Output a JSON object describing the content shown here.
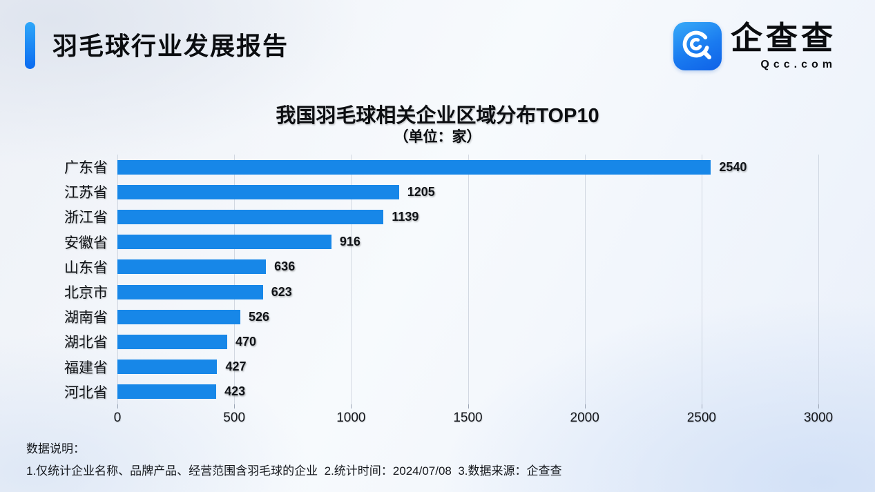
{
  "header": {
    "title": "羽毛球行业发展报告",
    "logo": {
      "name": "企查查",
      "domain": "Qcc.com"
    }
  },
  "chart_data": {
    "type": "bar",
    "orientation": "horizontal",
    "title": "我国羽毛球相关企业区域分布TOP10",
    "subtitle": "（单位：家）",
    "categories": [
      "广东省",
      "江苏省",
      "浙江省",
      "安徽省",
      "山东省",
      "北京市",
      "湖南省",
      "湖北省",
      "福建省",
      "河北省"
    ],
    "values": [
      2540,
      1205,
      1139,
      916,
      636,
      623,
      526,
      470,
      427,
      423
    ],
    "xlabel": "",
    "ylabel": "",
    "xlim": [
      0,
      3000
    ],
    "x_ticks": [
      0,
      500,
      1000,
      1500,
      2000,
      2500,
      3000
    ],
    "bar_color": "#1787e8",
    "grid": true,
    "legend": false
  },
  "footer": {
    "label": "数据说明：",
    "note": "1.仅统计企业名称、品牌产品、经营范围含羽毛球的企业  2.统计时间：2024/07/08  3.数据来源：企查查"
  },
  "colors": {
    "accent_top": "#2fa7f9",
    "accent_bottom": "#0b6bf0",
    "bar": "#1787e8",
    "text": "#15181d"
  }
}
